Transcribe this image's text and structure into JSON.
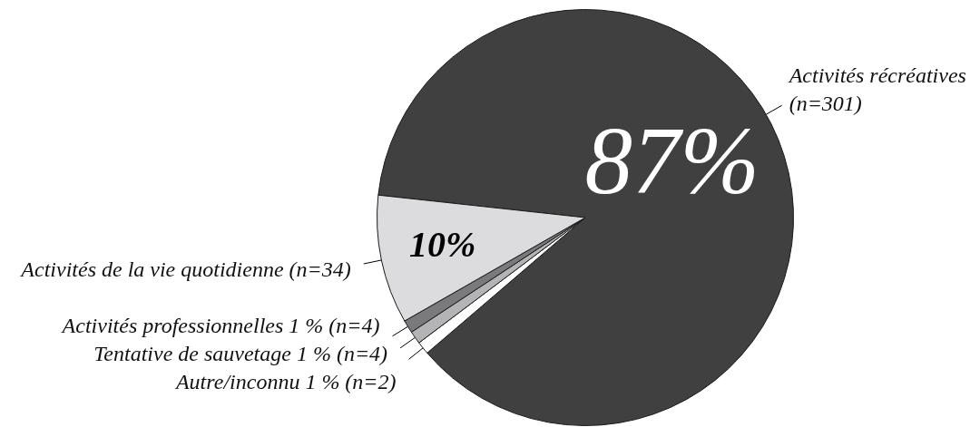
{
  "chart_data": {
    "type": "pie",
    "categories": [
      "Activités récréatives (n=301)",
      "Autre/inconnu 1 % (n=2)",
      "Tentative de sauvetage 1 % (n=4)",
      "Activités professionnelles 1 % (n=4)",
      "Activités de la vie quotidienne (n=34)"
    ],
    "values": [
      87,
      1,
      1,
      1,
      10
    ],
    "colors": [
      "#404040",
      "#ffffff",
      "#b4b4b7",
      "#7a7a7c",
      "#dcdcdf"
    ],
    "value_labels": [
      "87%",
      null,
      null,
      null,
      "10%"
    ]
  }
}
